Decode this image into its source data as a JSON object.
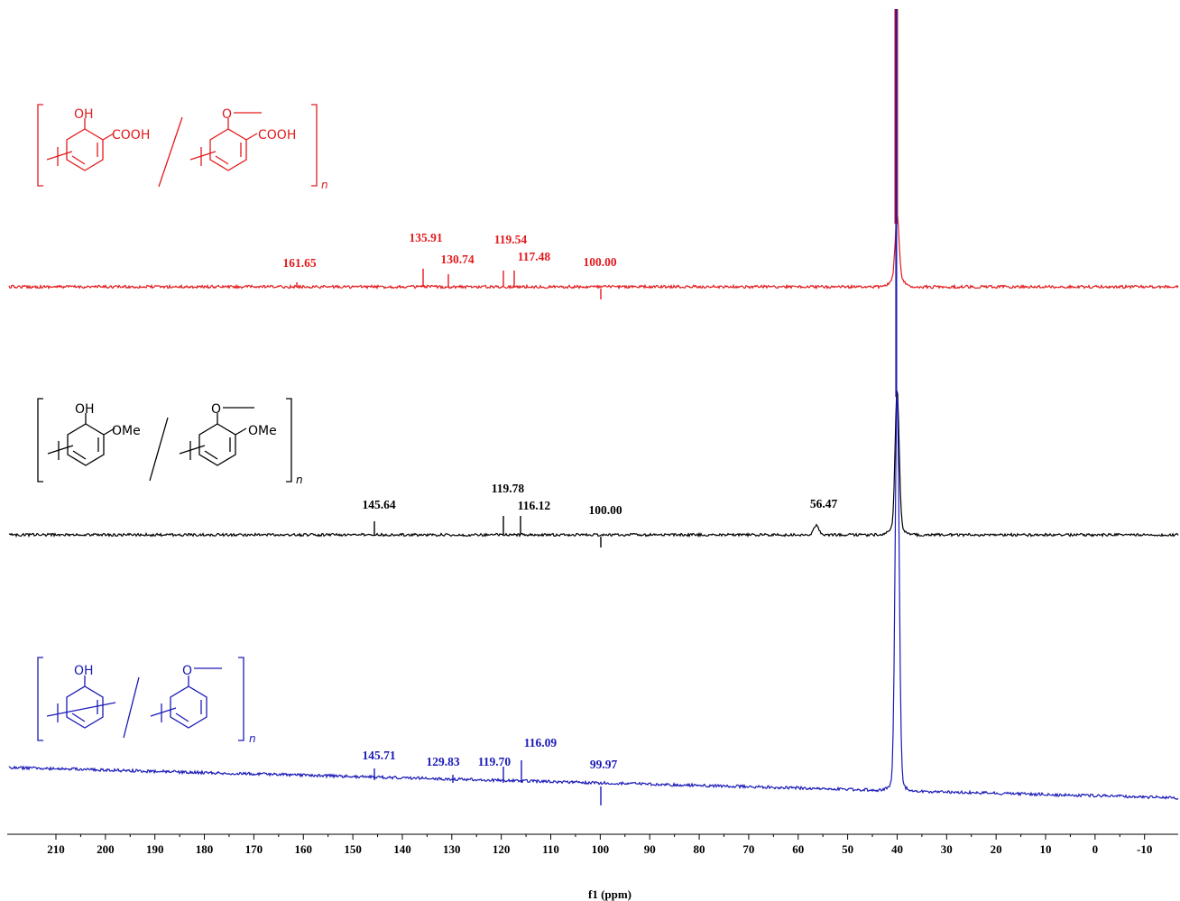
{
  "chart_data": {
    "type": "line",
    "xlabel": "f1 (ppm)",
    "xlim": [
      215,
      -17
    ],
    "x_ticks": [
      210,
      200,
      190,
      180,
      170,
      160,
      150,
      140,
      130,
      120,
      110,
      100,
      90,
      80,
      70,
      60,
      50,
      40,
      30,
      20,
      10,
      0,
      -10
    ],
    "x_tick_labels": [
      "210",
      "200",
      "190",
      "180",
      "170",
      "160",
      "150",
      "140",
      "130",
      "120",
      "110",
      "100",
      "90",
      "80",
      "70",
      "60",
      "50",
      "40",
      "30",
      "20",
      "10",
      "0",
      "-10"
    ],
    "series": [
      {
        "color": "#e31a1c",
        "solvent_peak_ppm": 40,
        "peaks": [
          {
            "x": 161.65,
            "label": "161.65"
          },
          {
            "x": 135.91,
            "label": "135.91"
          },
          {
            "x": 130.74,
            "label": "130.74"
          },
          {
            "x": 119.54,
            "label": "119.54"
          },
          {
            "x": 117.48,
            "label": "117.48"
          },
          {
            "x": 100.0,
            "label": "100.00"
          }
        ],
        "structure": {
          "groups": [
            "OH",
            "COOH",
            "O",
            "COOH"
          ],
          "subscript": "n"
        }
      },
      {
        "color": "#000000",
        "solvent_peak_ppm": 40,
        "peaks": [
          {
            "x": 145.64,
            "label": "145.64"
          },
          {
            "x": 119.78,
            "label": "119.78"
          },
          {
            "x": 116.12,
            "label": "116.12"
          },
          {
            "x": 100.0,
            "label": "100.00"
          },
          {
            "x": 56.47,
            "label": "56.47"
          }
        ],
        "structure": {
          "groups": [
            "OH",
            "OMe",
            "O",
            "OMe"
          ],
          "subscript": "n"
        }
      },
      {
        "color": "#1a1ab8",
        "solvent_peak_ppm": 40,
        "peaks": [
          {
            "x": 145.71,
            "label": "145.71"
          },
          {
            "x": 129.83,
            "label": "129.83"
          },
          {
            "x": 119.7,
            "label": "119.70"
          },
          {
            "x": 116.09,
            "label": "116.09"
          },
          {
            "x": 99.97,
            "label": "99.97"
          }
        ],
        "structure": {
          "groups": [
            "OH",
            "O"
          ],
          "subscript": "n"
        }
      }
    ]
  }
}
